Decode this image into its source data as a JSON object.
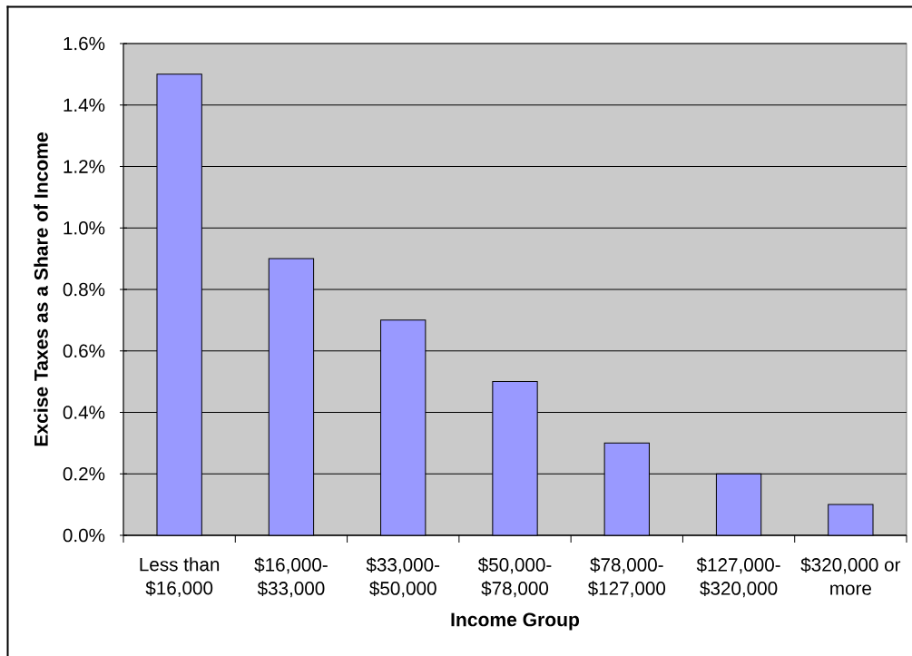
{
  "chart_data": {
    "type": "bar",
    "xlabel": "Income Group",
    "ylabel": "Excise Taxes as a Share of Income",
    "categories": [
      "Less than $16,000",
      "$16,000-$33,000",
      "$33,000-$50,000",
      "$50,000-$78,000",
      "$78,000-$127,000",
      "$127,000-$320,000",
      "$320,000 or more"
    ],
    "values": [
      1.5,
      0.9,
      0.7,
      0.5,
      0.3,
      0.2,
      0.1
    ],
    "color": "#9999ff",
    "ylim": [
      0,
      1.6
    ],
    "yticks": [
      {
        "value": 0,
        "label": "0.0%"
      },
      {
        "value": 0.2,
        "label": "0.2%"
      },
      {
        "value": 0.4,
        "label": "0.4%"
      },
      {
        "value": 0.6,
        "label": "0.6%"
      },
      {
        "value": 0.8,
        "label": "0.8%"
      },
      {
        "value": 1.0,
        "label": "1.0%"
      },
      {
        "value": 1.2,
        "label": "1.2%"
      },
      {
        "value": 1.4,
        "label": "1.4%"
      },
      {
        "value": 1.6,
        "label": "1.6%"
      }
    ],
    "grid": "y"
  }
}
